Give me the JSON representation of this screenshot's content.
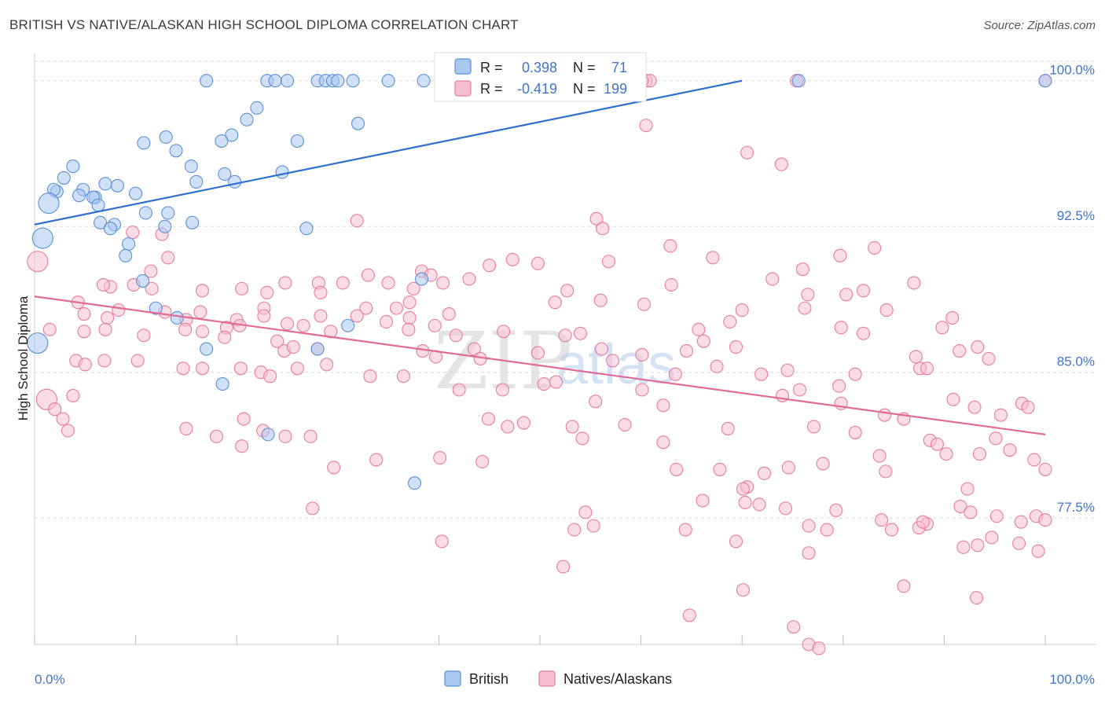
{
  "title": "BRITISH VS NATIVE/ALASKAN HIGH SCHOOL DIPLOMA CORRELATION CHART",
  "source": "Source: ZipAtlas.com",
  "colors": {
    "british_fill": "#a9c8f0",
    "british_stroke": "#5b8fd6",
    "british_line": "#2f6fcf",
    "native_fill": "#f6bfd0",
    "native_stroke": "#e77ba0",
    "native_line": "#e26b95",
    "tick_text": "#3f74c8",
    "grid": "#d9d9d9"
  },
  "legend_stats": {
    "rows": [
      {
        "r_label": "R =",
        "r_value": "0.398",
        "n_label": "N =",
        "n_value": "71"
      },
      {
        "r_label": "R =",
        "r_value": "-0.419",
        "n_label": "N =",
        "n_value": "199"
      }
    ]
  },
  "watermark": {
    "zip": "ZIP",
    "atlas": "atlas"
  },
  "chart_data": {
    "type": "scatter",
    "title": "BRITISH VS NATIVE/ALASKAN HIGH SCHOOL DIPLOMA CORRELATION CHART",
    "xlabel": "",
    "ylabel": "High School Diploma",
    "xlim": [
      0,
      100
    ],
    "ylim": [
      71.0,
      101.0
    ],
    "x_tick_labels": [
      "0.0%",
      "100.0%"
    ],
    "y_ticks": [
      77.5,
      85.0,
      92.5,
      100.0
    ],
    "y_tick_labels": [
      "77.5%",
      "85.0%",
      "92.5%",
      "100.0%"
    ],
    "grid": true,
    "legend_position": "bottom-center",
    "series": [
      {
        "name": "British",
        "trend": {
          "x": [
            0,
            70
          ],
          "y": [
            92.6,
            100.0
          ]
        },
        "points": [
          [
            17,
            100
          ],
          [
            23,
            100
          ],
          [
            23.8,
            100
          ],
          [
            25,
            100
          ],
          [
            28,
            100
          ],
          [
            28.8,
            100
          ],
          [
            29.5,
            100
          ],
          [
            30,
            100
          ],
          [
            31.5,
            100
          ],
          [
            35,
            100
          ],
          [
            38.5,
            100
          ],
          [
            47,
            100
          ],
          [
            50,
            100
          ],
          [
            75.6,
            100
          ],
          [
            100,
            100
          ],
          [
            22,
            98.6
          ],
          [
            21,
            98.0
          ],
          [
            32,
            97.8
          ],
          [
            19.5,
            97.2
          ],
          [
            13,
            97.1
          ],
          [
            10.8,
            96.8
          ],
          [
            26,
            96.9
          ],
          [
            18.5,
            96.9
          ],
          [
            14,
            96.4
          ],
          [
            3.8,
            95.6
          ],
          [
            15.5,
            95.6
          ],
          [
            18.8,
            95.2
          ],
          [
            24.5,
            95.3
          ],
          [
            2.9,
            95.0
          ],
          [
            7,
            94.7
          ],
          [
            8.2,
            94.6
          ],
          [
            16,
            94.8
          ],
          [
            19.8,
            94.8
          ],
          [
            4.8,
            94.4
          ],
          [
            2.2,
            94.3
          ],
          [
            1.9,
            94.4
          ],
          [
            4.4,
            94.1
          ],
          [
            10,
            94.2
          ],
          [
            6,
            94.0
          ],
          [
            5.8,
            94.0
          ],
          [
            6.3,
            93.6
          ],
          [
            1.4,
            93.7
          ],
          [
            11,
            93.2
          ],
          [
            13.2,
            93.2
          ],
          [
            6.5,
            92.7
          ],
          [
            15.6,
            92.7
          ],
          [
            7.9,
            92.6
          ],
          [
            12.9,
            92.5
          ],
          [
            26.9,
            92.4
          ],
          [
            7.5,
            92.4
          ],
          [
            0.8,
            91.9
          ],
          [
            9.3,
            91.6
          ],
          [
            9,
            91.0
          ],
          [
            10.7,
            89.7
          ],
          [
            38.3,
            89.8
          ],
          [
            12,
            88.3
          ],
          [
            14.1,
            87.8
          ],
          [
            31,
            87.4
          ],
          [
            0.3,
            86.5
          ],
          [
            17,
            86.2
          ],
          [
            28,
            86.2
          ],
          [
            18.6,
            84.4
          ],
          [
            23.1,
            81.8
          ],
          [
            37.6,
            79.3
          ]
        ]
      },
      {
        "name": "Natives/Alaskans",
        "trend": {
          "x": [
            0,
            100
          ],
          "y": [
            88.9,
            81.8
          ]
        },
        "points": [
          [
            60.5,
            100
          ],
          [
            60.9,
            100
          ],
          [
            60.1,
            100
          ],
          [
            75.4,
            100
          ],
          [
            100,
            100
          ],
          [
            60.5,
            97.7
          ],
          [
            70.5,
            96.3
          ],
          [
            73.9,
            95.7
          ],
          [
            55.6,
            92.9
          ],
          [
            31.9,
            92.8
          ],
          [
            56.2,
            92.4
          ],
          [
            12.6,
            92.1
          ],
          [
            9.7,
            92.2
          ],
          [
            83.1,
            91.4
          ],
          [
            62.9,
            91.5
          ],
          [
            0.3,
            90.7
          ],
          [
            13.2,
            90.9
          ],
          [
            47.3,
            90.8
          ],
          [
            56.8,
            90.7
          ],
          [
            49.8,
            90.6
          ],
          [
            67.1,
            90.9
          ],
          [
            79.7,
            91.0
          ],
          [
            45,
            90.5
          ],
          [
            11.5,
            90.2
          ],
          [
            38.3,
            90.2
          ],
          [
            76,
            90.3
          ],
          [
            7.5,
            89.4
          ],
          [
            11.6,
            89.3
          ],
          [
            33,
            90.0
          ],
          [
            39.2,
            90.0
          ],
          [
            73,
            89.8
          ],
          [
            24.8,
            89.6
          ],
          [
            28.1,
            89.6
          ],
          [
            30.5,
            89.6
          ],
          [
            40.4,
            89.6
          ],
          [
            43,
            89.8
          ],
          [
            6.8,
            89.5
          ],
          [
            9.8,
            89.5
          ],
          [
            16.6,
            89.2
          ],
          [
            20.5,
            89.3
          ],
          [
            23,
            89.1
          ],
          [
            28.3,
            89.1
          ],
          [
            35,
            89.6
          ],
          [
            37.5,
            89.3
          ],
          [
            52.7,
            89.2
          ],
          [
            76.5,
            89.0
          ],
          [
            80.3,
            89.0
          ],
          [
            87,
            89.6
          ],
          [
            63,
            89.5
          ],
          [
            82,
            89.2
          ],
          [
            4.3,
            88.6
          ],
          [
            8.3,
            88.2
          ],
          [
            12.9,
            88.1
          ],
          [
            16.4,
            88.1
          ],
          [
            22.7,
            88.3
          ],
          [
            32.8,
            88.3
          ],
          [
            35.8,
            88.3
          ],
          [
            37.1,
            88.6
          ],
          [
            51.5,
            88.6
          ],
          [
            56,
            88.7
          ],
          [
            60.3,
            88.5
          ],
          [
            70,
            88.2
          ],
          [
            76.2,
            88.3
          ],
          [
            4.9,
            88.0
          ],
          [
            7.2,
            87.8
          ],
          [
            15,
            87.7
          ],
          [
            20,
            87.7
          ],
          [
            22.7,
            87.9
          ],
          [
            25,
            87.5
          ],
          [
            28.3,
            87.9
          ],
          [
            31.9,
            87.9
          ],
          [
            34.8,
            87.6
          ],
          [
            37.1,
            87.8
          ],
          [
            41,
            88.0
          ],
          [
            1.5,
            87.2
          ],
          [
            4.9,
            87.1
          ],
          [
            7,
            87.2
          ],
          [
            14.9,
            87.2
          ],
          [
            16.6,
            87.1
          ],
          [
            19,
            87.3
          ],
          [
            20.3,
            87.4
          ],
          [
            29.3,
            87.1
          ],
          [
            46.4,
            87.1
          ],
          [
            52.5,
            86.9
          ],
          [
            66.2,
            86.6
          ],
          [
            68.8,
            87.6
          ],
          [
            10.8,
            86.9
          ],
          [
            18.8,
            86.8
          ],
          [
            24,
            86.6
          ],
          [
            26.6,
            87.4
          ],
          [
            37,
            87.2
          ],
          [
            39.6,
            87.4
          ],
          [
            41.7,
            86.9
          ],
          [
            54,
            87.0
          ],
          [
            65.7,
            87.2
          ],
          [
            79.8,
            87.3
          ],
          [
            82,
            87.0
          ],
          [
            84.3,
            88.2
          ],
          [
            89.8,
            87.3
          ],
          [
            90.8,
            87.8
          ],
          [
            24.7,
            86.1
          ],
          [
            25.6,
            86.3
          ],
          [
            28,
            86.2
          ],
          [
            38.4,
            86.1
          ],
          [
            43.5,
            86.2
          ],
          [
            56.1,
            86.2
          ],
          [
            60.1,
            85.9
          ],
          [
            64.5,
            86.1
          ],
          [
            69.4,
            86.3
          ],
          [
            87.2,
            85.8
          ],
          [
            87.6,
            85.2
          ],
          [
            91.5,
            86.1
          ],
          [
            93.3,
            86.3
          ],
          [
            4.1,
            85.6
          ],
          [
            6.9,
            85.6
          ],
          [
            10.2,
            85.6
          ],
          [
            14.7,
            85.2
          ],
          [
            16.6,
            85.2
          ],
          [
            20.4,
            85.2
          ],
          [
            22.4,
            85.0
          ],
          [
            23.3,
            84.8
          ],
          [
            26,
            85.2
          ],
          [
            28.9,
            85.4
          ],
          [
            33.2,
            84.8
          ],
          [
            36.5,
            84.8
          ],
          [
            39.7,
            85.8
          ],
          [
            44.1,
            85.7
          ],
          [
            49.8,
            86.0
          ],
          [
            5,
            85.4
          ],
          [
            57.2,
            85.6
          ],
          [
            60.1,
            84.1
          ],
          [
            63.4,
            84.9
          ],
          [
            67.5,
            85.3
          ],
          [
            71.9,
            84.9
          ],
          [
            74.5,
            85.1
          ],
          [
            81.2,
            84.9
          ],
          [
            88.3,
            85.2
          ],
          [
            94.4,
            85.7
          ],
          [
            1.2,
            83.6
          ],
          [
            3.8,
            83.8
          ],
          [
            42,
            84.1
          ],
          [
            46.3,
            84.1
          ],
          [
            50.4,
            84.4
          ],
          [
            51.6,
            84.5
          ],
          [
            75.7,
            84.1
          ],
          [
            79.6,
            84.3
          ],
          [
            2,
            83.1
          ],
          [
            2.8,
            82.6
          ],
          [
            3.3,
            82.0
          ],
          [
            20.7,
            82.6
          ],
          [
            22.6,
            82.0
          ],
          [
            27.3,
            81.7
          ],
          [
            44.9,
            82.6
          ],
          [
            46.8,
            82.2
          ],
          [
            48.4,
            82.4
          ],
          [
            55.5,
            83.5
          ],
          [
            62.2,
            83.3
          ],
          [
            74,
            83.8
          ],
          [
            79.8,
            83.4
          ],
          [
            84.1,
            82.8
          ],
          [
            86,
            82.6
          ],
          [
            90.9,
            83.6
          ],
          [
            93,
            83.2
          ],
          [
            95.6,
            82.8
          ],
          [
            97.7,
            83.4
          ],
          [
            98.3,
            83.2
          ],
          [
            15,
            82.1
          ],
          [
            18,
            81.7
          ],
          [
            24.8,
            81.7
          ],
          [
            53.2,
            82.2
          ],
          [
            54.2,
            81.6
          ],
          [
            58.4,
            82.3
          ],
          [
            62.2,
            81.4
          ],
          [
            68.6,
            82.1
          ],
          [
            77.1,
            82.2
          ],
          [
            81.2,
            81.9
          ],
          [
            20.5,
            81.2
          ],
          [
            29.6,
            80.1
          ],
          [
            33.8,
            80.5
          ],
          [
            40.1,
            80.6
          ],
          [
            44.3,
            80.4
          ],
          [
            63.5,
            80.0
          ],
          [
            74.6,
            80.1
          ],
          [
            84.2,
            79.9
          ],
          [
            88.6,
            81.5
          ],
          [
            89.3,
            81.3
          ],
          [
            90.2,
            80.8
          ],
          [
            95.1,
            81.6
          ],
          [
            96.5,
            81.0
          ],
          [
            98.9,
            80.5
          ],
          [
            67.8,
            80.0
          ],
          [
            72.2,
            79.8
          ],
          [
            78,
            80.3
          ],
          [
            83.6,
            80.7
          ],
          [
            93.5,
            80.8
          ],
          [
            70.5,
            79.1
          ],
          [
            70.1,
            79.0
          ],
          [
            71.7,
            78.2
          ],
          [
            74.3,
            78.0
          ],
          [
            92.3,
            79.0
          ],
          [
            100,
            80.0
          ],
          [
            27.5,
            78.0
          ],
          [
            54.5,
            77.8
          ],
          [
            66.1,
            78.4
          ],
          [
            70.3,
            78.3
          ],
          [
            76.6,
            77.1
          ],
          [
            79.3,
            77.9
          ],
          [
            83.8,
            77.4
          ],
          [
            84.8,
            76.9
          ],
          [
            88.3,
            77.2
          ],
          [
            91.6,
            78.1
          ],
          [
            92.6,
            77.8
          ],
          [
            95.2,
            77.6
          ],
          [
            97.6,
            77.3
          ],
          [
            99.1,
            77.6
          ],
          [
            100,
            77.4
          ],
          [
            40.3,
            76.3
          ],
          [
            52.3,
            75.0
          ],
          [
            53.4,
            76.9
          ],
          [
            55.3,
            77.1
          ],
          [
            64.4,
            76.9
          ],
          [
            78.4,
            76.9
          ],
          [
            87.5,
            77.0
          ],
          [
            91.9,
            76.0
          ],
          [
            94.7,
            76.5
          ],
          [
            99.3,
            75.8
          ],
          [
            97.4,
            76.2
          ],
          [
            69.4,
            76.3
          ],
          [
            76.6,
            75.7
          ],
          [
            93.3,
            76.1
          ],
          [
            87.9,
            77.3
          ],
          [
            86,
            74.0
          ],
          [
            70.1,
            73.8
          ],
          [
            93.2,
            73.4
          ],
          [
            64.8,
            72.5
          ],
          [
            75.1,
            71.9
          ],
          [
            76.6,
            71.0
          ],
          [
            77.6,
            70.8
          ]
        ]
      }
    ]
  },
  "legend": {
    "items": [
      {
        "label": "British"
      },
      {
        "label": "Natives/Alaskans"
      }
    ]
  }
}
